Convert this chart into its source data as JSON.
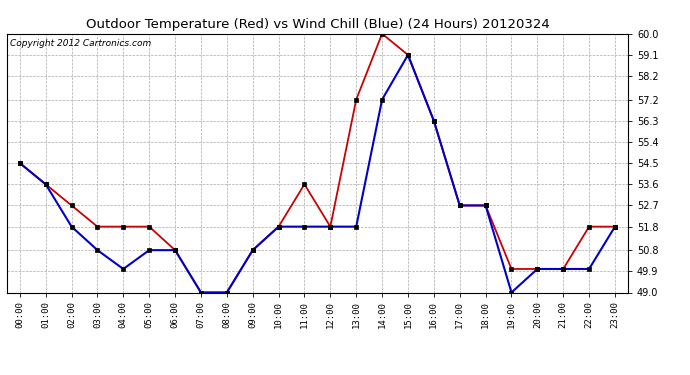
{
  "title": "Outdoor Temperature (Red) vs Wind Chill (Blue) (24 Hours) 20120324",
  "copyright": "Copyright 2012 Cartronics.com",
  "hours": [
    "00:00",
    "01:00",
    "02:00",
    "03:00",
    "04:00",
    "05:00",
    "06:00",
    "07:00",
    "08:00",
    "09:00",
    "10:00",
    "11:00",
    "12:00",
    "13:00",
    "14:00",
    "15:00",
    "16:00",
    "17:00",
    "18:00",
    "19:00",
    "20:00",
    "21:00",
    "22:00",
    "23:00"
  ],
  "red_temp": [
    54.5,
    53.6,
    52.7,
    51.8,
    51.8,
    51.8,
    50.8,
    49.0,
    49.0,
    50.8,
    51.8,
    53.6,
    51.8,
    57.2,
    60.0,
    59.1,
    56.3,
    52.7,
    52.7,
    50.0,
    50.0,
    50.0,
    51.8,
    51.8
  ],
  "blue_wc": [
    54.5,
    53.6,
    51.8,
    50.8,
    50.0,
    50.8,
    50.8,
    49.0,
    49.0,
    50.8,
    51.8,
    51.8,
    51.8,
    51.8,
    57.2,
    59.1,
    56.3,
    52.7,
    52.7,
    49.0,
    50.0,
    50.0,
    50.0,
    51.8
  ],
  "ylim": [
    49.0,
    60.0
  ],
  "yticks": [
    49.0,
    49.9,
    50.8,
    51.8,
    52.7,
    53.6,
    54.5,
    55.4,
    56.3,
    57.2,
    58.2,
    59.1,
    60.0
  ],
  "bg_color": "#ffffff",
  "grid_color": "#aaaaaa",
  "red_color": "#cc0000",
  "blue_color": "#0000cc",
  "title_fontsize": 9.5,
  "copyright_fontsize": 6.5,
  "marker_color": "#000000"
}
